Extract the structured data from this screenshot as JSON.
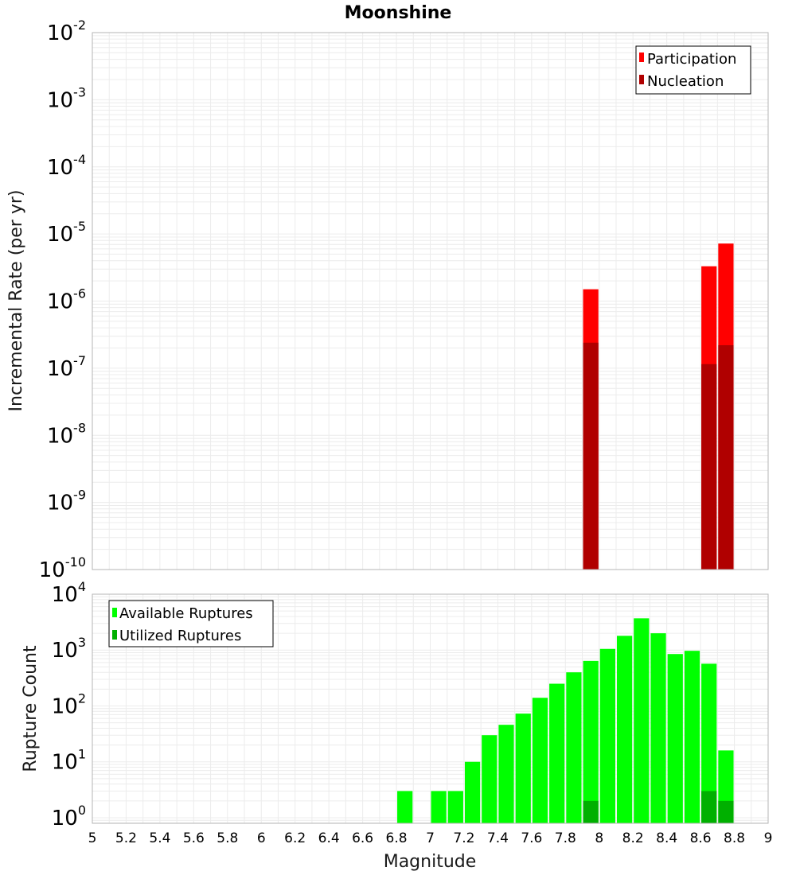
{
  "chart_data": [
    {
      "type": "bar",
      "title": "Moonshine",
      "ylabel": "Incremental Rate (per yr)",
      "yscale": "log",
      "ylim_exp": [
        -10,
        -2
      ],
      "xlim": [
        5,
        9
      ],
      "bar_width": 0.1,
      "grid": true,
      "legend_position": "top-right",
      "series": [
        {
          "name": "Participation",
          "color": "#ff0000",
          "points": [
            {
              "x": 7.95,
              "y": 1.5e-06
            },
            {
              "x": 8.65,
              "y": 3.3e-06
            },
            {
              "x": 8.75,
              "y": 7.2e-06
            }
          ]
        },
        {
          "name": "Nucleation",
          "color": "#b00000",
          "points": [
            {
              "x": 7.95,
              "y": 2.4e-07
            },
            {
              "x": 8.65,
              "y": 1.15e-07
            },
            {
              "x": 8.75,
              "y": 2.2e-07
            }
          ]
        }
      ]
    },
    {
      "type": "bar",
      "xlabel": "Magnitude",
      "ylabel": "Rupture Count",
      "yscale": "log",
      "ylim_exp": [
        -0.1,
        4
      ],
      "xlim": [
        5,
        9
      ],
      "bar_width": 0.1,
      "grid": true,
      "legend_position": "top-left",
      "series": [
        {
          "name": "Available Ruptures",
          "color": "#00ff00",
          "points": [
            {
              "x": 6.85,
              "y": 3
            },
            {
              "x": 7.05,
              "y": 3
            },
            {
              "x": 7.15,
              "y": 3
            },
            {
              "x": 7.25,
              "y": 10
            },
            {
              "x": 7.35,
              "y": 30
            },
            {
              "x": 7.45,
              "y": 46
            },
            {
              "x": 7.55,
              "y": 73
            },
            {
              "x": 7.65,
              "y": 140
            },
            {
              "x": 7.75,
              "y": 250
            },
            {
              "x": 7.85,
              "y": 400
            },
            {
              "x": 7.95,
              "y": 640
            },
            {
              "x": 8.05,
              "y": 1050
            },
            {
              "x": 8.15,
              "y": 1800
            },
            {
              "x": 8.25,
              "y": 3700
            },
            {
              "x": 8.35,
              "y": 2000
            },
            {
              "x": 8.45,
              "y": 850
            },
            {
              "x": 8.55,
              "y": 970
            },
            {
              "x": 8.65,
              "y": 570
            },
            {
              "x": 8.75,
              "y": 16
            }
          ]
        },
        {
          "name": "Utilized Ruptures",
          "color": "#00b000",
          "points": [
            {
              "x": 7.95,
              "y": 2
            },
            {
              "x": 8.65,
              "y": 3
            },
            {
              "x": 8.75,
              "y": 2
            }
          ]
        }
      ]
    }
  ],
  "x_ticks": [
    "5",
    "5.2",
    "5.4",
    "5.6",
    "5.8",
    "6",
    "6.2",
    "6.4",
    "6.6",
    "6.8",
    "7",
    "7.2",
    "7.4",
    "7.6",
    "7.8",
    "8",
    "8.2",
    "8.4",
    "8.6",
    "8.8",
    "9"
  ],
  "top_y_ticks": [
    {
      "base": "10",
      "exp": "-2"
    },
    {
      "base": "10",
      "exp": "-3"
    },
    {
      "base": "10",
      "exp": "-4"
    },
    {
      "base": "10",
      "exp": "-5"
    },
    {
      "base": "10",
      "exp": "-6"
    },
    {
      "base": "10",
      "exp": "-7"
    },
    {
      "base": "10",
      "exp": "-8"
    },
    {
      "base": "10",
      "exp": "-9"
    },
    {
      "base": "10",
      "exp": "-10"
    }
  ],
  "bottom_y_ticks": [
    {
      "base": "10",
      "exp": "4"
    },
    {
      "base": "10",
      "exp": "3"
    },
    {
      "base": "10",
      "exp": "2"
    },
    {
      "base": "10",
      "exp": "1"
    },
    {
      "base": "10",
      "exp": "0"
    }
  ]
}
